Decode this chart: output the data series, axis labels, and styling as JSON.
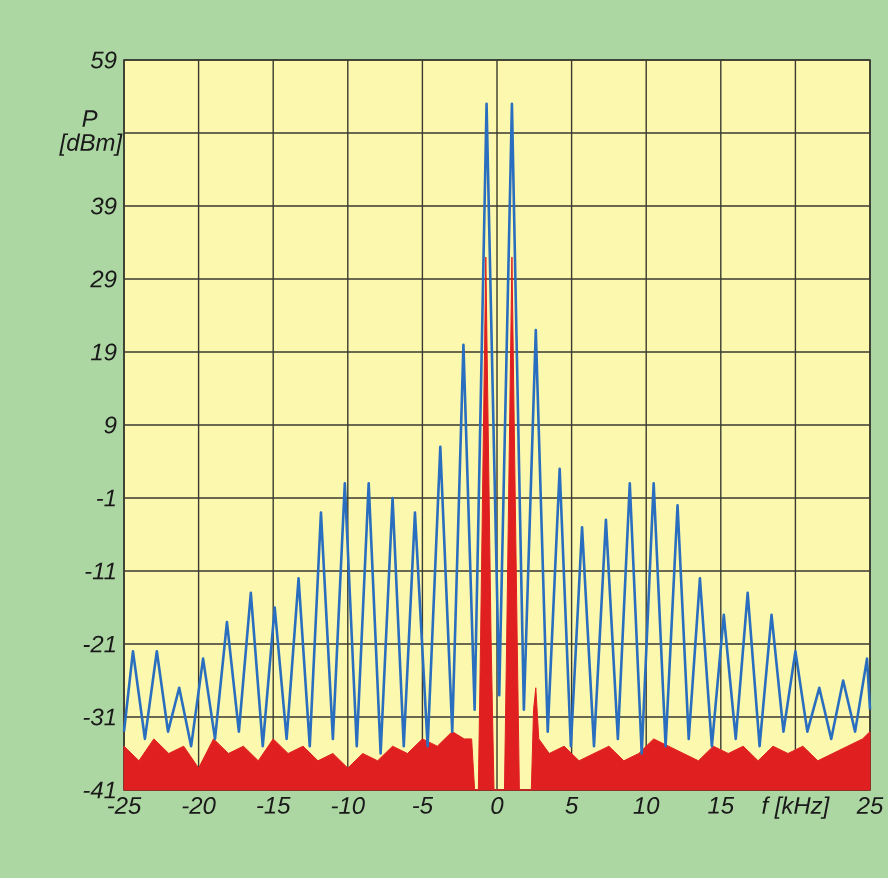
{
  "chart_data": {
    "type": "line",
    "xlabel": "f [kHz]",
    "ylabel": "P [dBm]",
    "xlim": [
      -25,
      25
    ],
    "ylim": [
      -41,
      59
    ],
    "xticks": [
      -25,
      -20,
      -15,
      -10,
      -5,
      0,
      5,
      10,
      15,
      {
        "value": 20,
        "label": null
      },
      25
    ],
    "yticks": [
      -41,
      -31,
      -21,
      -11,
      -1,
      9,
      19,
      29,
      39,
      {
        "value": 49,
        "label": null
      },
      59
    ],
    "grid": true,
    "series": [
      {
        "color": "#2a6ebf",
        "x": [
          -25,
          -24.4,
          -23.6,
          -22.8,
          -22.05,
          -21.3,
          -20.5,
          -19.7,
          -18.9,
          -18.1,
          -17.3,
          -16.5,
          -15.7,
          -14.9,
          -14.1,
          -13.3,
          -12.55,
          -11.8,
          -11.0,
          -10.2,
          -9.4,
          -8.6,
          -7.8,
          -7.0,
          -6.25,
          -5.5,
          -4.65,
          -3.8,
          -3.0,
          -2.25,
          -1.5,
          -0.7,
          0.15,
          1.0,
          1.8,
          2.6,
          3.4,
          4.2,
          4.95,
          5.7,
          6.5,
          7.3,
          8.1,
          8.9,
          9.7,
          10.5,
          11.3,
          12.1,
          12.85,
          13.6,
          14.4,
          15.2,
          16.0,
          16.8,
          17.6,
          18.4,
          19.2,
          20.0,
          20.8,
          21.6,
          22.4,
          23.2,
          24.0,
          24.8,
          25
        ],
        "values": [
          -33,
          -22,
          -34,
          -22,
          -33,
          -27,
          -35,
          -23,
          -34,
          -18,
          -33,
          -14,
          -35,
          -16,
          -34,
          -12,
          -35,
          -3,
          -34,
          1,
          -35,
          1,
          -36,
          -1,
          -35,
          -3,
          -35,
          6,
          -33,
          20,
          -30,
          53,
          -28,
          53,
          -30,
          22,
          -33,
          3,
          -35,
          -5,
          -35,
          -4,
          -34,
          1,
          -36,
          1,
          -35,
          -2,
          -34,
          -12,
          -35,
          -17,
          -34,
          -14,
          -35,
          -17,
          -33,
          -22,
          -33,
          -27,
          -34,
          -26,
          -33,
          -23,
          -30
        ]
      },
      {
        "type": "area",
        "color": "#e02020",
        "x": [
          -25,
          -25,
          -24,
          -23,
          -22,
          -21,
          -20,
          -19,
          -18,
          -17,
          -16,
          -15,
          -14,
          -13,
          -12,
          -11,
          -10,
          -9,
          -8,
          -7,
          -6,
          -5,
          -4,
          -3,
          -2.2,
          -1.7,
          -1.5,
          -1.25,
          -1.1,
          -0.75,
          -0.4,
          -0.2,
          0.5,
          0.65,
          1.0,
          1.35,
          1.5,
          2.3,
          2.45,
          2.6,
          2.8,
          3.5,
          4.5,
          5.5,
          6.5,
          7.5,
          8.5,
          9.5,
          10.5,
          11.5,
          12.5,
          13.5,
          14.5,
          15.5,
          16.5,
          17.5,
          18.5,
          19.5,
          20.5,
          21.5,
          22.5,
          23.5,
          24.5,
          25,
          25
        ],
        "values": [
          -41,
          -35,
          -37,
          -34,
          -36,
          -35,
          -38,
          -34,
          -36,
          -35,
          -37,
          -34,
          -36,
          -35,
          -37,
          -36,
          -38,
          -36,
          -37,
          -35,
          -36,
          -34,
          -35,
          -33,
          -34,
          -34,
          -41,
          -41,
          -20,
          32,
          -20,
          -41,
          -41,
          -20,
          32,
          -20,
          -41,
          -41,
          -30,
          -27,
          -34,
          -36,
          -35,
          -37,
          -36,
          -35,
          -37,
          -36,
          -34,
          -35,
          -36,
          -37,
          -35,
          -36,
          -35,
          -37,
          -35,
          -36,
          -35,
          -37,
          -36,
          -35,
          -34,
          -33,
          -41
        ]
      }
    ]
  }
}
